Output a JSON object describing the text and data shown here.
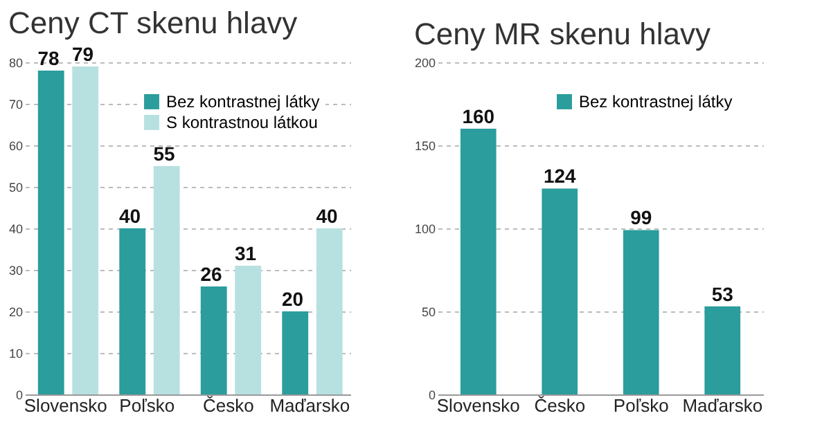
{
  "chart_data": [
    {
      "type": "bar",
      "title": "Ceny CT skenu hlavy",
      "categories": [
        "Slovensko",
        "Poľsko",
        "Česko",
        "Maďarsko"
      ],
      "series": [
        {
          "name": "Bez kontrastnej látky",
          "color": "#2a9d9c",
          "values": [
            78,
            40,
            26,
            20
          ]
        },
        {
          "name": "S kontrastnou látkou",
          "color": "#b7e1e0",
          "values": [
            79,
            55,
            31,
            40
          ]
        }
      ],
      "ylim": [
        0,
        80
      ],
      "yticks": [
        0,
        10,
        20,
        30,
        40,
        50,
        60,
        70,
        80
      ],
      "grid": "y",
      "legend": "top right",
      "data_labels": true
    },
    {
      "type": "bar",
      "title": "Ceny MR skenu hlavy",
      "categories": [
        "Slovensko",
        "Česko",
        "Poľsko",
        "Maďarsko"
      ],
      "series": [
        {
          "name": "Bez kontrastnej látky",
          "color": "#2a9d9c",
          "values": [
            160,
            124,
            99,
            53
          ]
        }
      ],
      "ylim": [
        0,
        200
      ],
      "yticks": [
        0,
        50,
        100,
        150,
        200
      ],
      "grid": "y",
      "legend": "top right",
      "data_labels": true
    }
  ]
}
